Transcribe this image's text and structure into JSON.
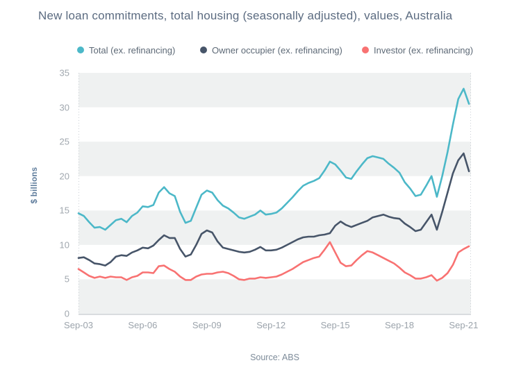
{
  "title": "New loan commitments, total housing (seasonally adjusted), values, Australia",
  "source_note": "Source: ABS",
  "chart_data": {
    "type": "line",
    "title": "New loan commitments, total housing (seasonally adjusted), values, Australia",
    "ylabel": "$ billions",
    "xlabel": "",
    "ylim": [
      0,
      35
    ],
    "yticks": [
      0,
      5,
      10,
      15,
      20,
      25,
      30,
      35
    ],
    "xticks": [
      "Sep-03",
      "Sep-06",
      "Sep-09",
      "Sep-12",
      "Sep-15",
      "Sep-18",
      "Sep-21"
    ],
    "x_start": "Sep-2003",
    "x_end": "Dec-2021",
    "x_interval_months": 3,
    "legend_position": "top",
    "grid": "alternating-horizontal-bands",
    "band_fill": "#eff1f1",
    "axis_line_color": "#d9dcdf",
    "edge_dotted_color": "#c9ced4",
    "series": [
      {
        "name": "Total (ex. refinancing)",
        "color": "#4cb8c8",
        "values": [
          14.6,
          14.2,
          13.3,
          12.5,
          12.6,
          12.2,
          12.9,
          13.6,
          13.8,
          13.3,
          14.2,
          14.7,
          15.6,
          15.5,
          15.8,
          17.6,
          18.4,
          17.5,
          17.1,
          14.8,
          13.2,
          13.5,
          15.4,
          17.3,
          17.9,
          17.6,
          16.5,
          15.7,
          15.3,
          14.7,
          14.0,
          13.8,
          14.1,
          14.4,
          15.0,
          14.4,
          14.5,
          14.7,
          15.3,
          16.1,
          16.9,
          17.8,
          18.6,
          19.0,
          19.3,
          19.7,
          20.8,
          22.1,
          21.7,
          20.8,
          19.8,
          19.6,
          20.7,
          21.7,
          22.6,
          22.9,
          22.7,
          22.5,
          21.8,
          21.2,
          20.5,
          19.1,
          18.2,
          17.1,
          17.3,
          18.6,
          20.0,
          17.0,
          20.0,
          23.5,
          27.5,
          31.2,
          32.7,
          30.5
        ]
      },
      {
        "name": "Owner occupier (ex. refinancing)",
        "color": "#475569",
        "values": [
          8.1,
          8.2,
          7.8,
          7.3,
          7.2,
          7.0,
          7.5,
          8.3,
          8.5,
          8.4,
          8.9,
          9.2,
          9.6,
          9.5,
          9.9,
          10.7,
          11.4,
          11.0,
          11.0,
          9.4,
          8.3,
          8.6,
          10.0,
          11.6,
          12.1,
          11.8,
          10.5,
          9.6,
          9.4,
          9.2,
          9.0,
          8.9,
          9.0,
          9.3,
          9.7,
          9.2,
          9.2,
          9.3,
          9.6,
          10.0,
          10.4,
          10.8,
          11.1,
          11.2,
          11.2,
          11.4,
          11.5,
          11.7,
          12.8,
          13.4,
          12.9,
          12.6,
          12.9,
          13.2,
          13.5,
          14.0,
          14.2,
          14.4,
          14.1,
          13.9,
          13.8,
          13.1,
          12.6,
          12.0,
          12.2,
          13.3,
          14.4,
          12.2,
          14.8,
          17.6,
          20.4,
          22.3,
          23.3,
          20.7
        ]
      },
      {
        "name": "Investor (ex. refinancing)",
        "color": "#f87272",
        "values": [
          6.5,
          6.0,
          5.5,
          5.2,
          5.4,
          5.2,
          5.4,
          5.3,
          5.3,
          4.9,
          5.3,
          5.5,
          6.0,
          6.0,
          5.9,
          6.9,
          7.0,
          6.5,
          6.1,
          5.4,
          4.9,
          4.9,
          5.4,
          5.7,
          5.8,
          5.8,
          6.0,
          6.1,
          5.9,
          5.5,
          5.0,
          4.9,
          5.1,
          5.1,
          5.3,
          5.2,
          5.3,
          5.4,
          5.7,
          6.1,
          6.5,
          7.0,
          7.5,
          7.8,
          8.1,
          8.3,
          9.3,
          10.4,
          8.9,
          7.4,
          6.9,
          7.0,
          7.8,
          8.5,
          9.1,
          8.9,
          8.5,
          8.1,
          7.7,
          7.3,
          6.7,
          6.0,
          5.6,
          5.1,
          5.1,
          5.3,
          5.6,
          4.8,
          5.2,
          5.9,
          7.1,
          8.9,
          9.4,
          9.8
        ]
      }
    ]
  }
}
